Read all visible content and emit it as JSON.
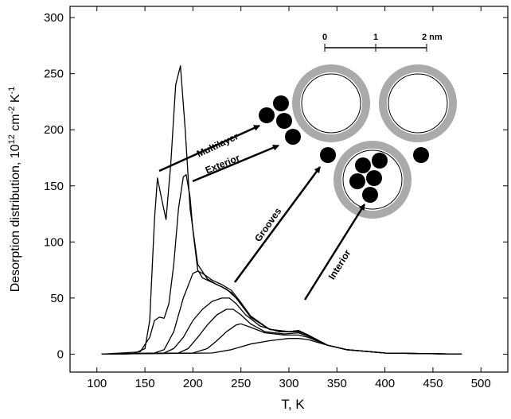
{
  "chart_data": {
    "type": "line",
    "xlabel": "T, K",
    "ylabel": [
      "Desorption distribution, 10",
      "12",
      " cm",
      "-2",
      " K",
      "-1"
    ],
    "xlim": [
      72,
      528
    ],
    "ylim": [
      -16,
      310
    ],
    "xticks": [
      100,
      150,
      200,
      250,
      300,
      350,
      400,
      450,
      500
    ],
    "yticks": [
      0,
      50,
      100,
      150,
      200,
      250,
      300
    ],
    "color": "#000000",
    "annotations": [
      "Multilayer",
      "Exterior",
      "Grooves",
      "Interior"
    ],
    "scale_bar": [
      "0",
      "1",
      "2 nm"
    ],
    "series": [
      {
        "x": [
          105,
          130,
          140,
          150,
          155,
          160,
          163,
          167,
          172,
          177,
          182,
          187,
          192,
          197,
          205,
          215,
          225,
          235,
          245,
          260,
          280,
          300,
          310,
          320,
          340,
          360,
          400,
          450,
          480
        ],
        "values": [
          0,
          0,
          1,
          5,
          30,
          120,
          157,
          140,
          120,
          170,
          240,
          257,
          200,
          130,
          80,
          67,
          62,
          58,
          50,
          33,
          22,
          20,
          21,
          17,
          8,
          4,
          1,
          0.3,
          0
        ]
      },
      {
        "x": [
          105,
          145,
          155,
          160,
          165,
          170,
          175,
          180,
          185,
          190,
          193,
          197,
          200,
          205,
          210,
          220,
          230,
          240,
          250,
          260,
          280,
          300,
          310,
          320,
          340,
          360,
          400,
          480
        ],
        "values": [
          0,
          2,
          15,
          30,
          33,
          32,
          45,
          80,
          130,
          158,
          160,
          140,
          110,
          75,
          68,
          64,
          60,
          55,
          45,
          33,
          22,
          20,
          21,
          17,
          8,
          4,
          1,
          0
        ]
      },
      {
        "x": [
          105,
          160,
          170,
          180,
          190,
          200,
          205,
          210,
          220,
          230,
          240,
          250,
          260,
          280,
          300,
          310,
          320,
          340,
          360,
          400,
          480
        ],
        "values": [
          0,
          1,
          4,
          20,
          50,
          72,
          74,
          72,
          66,
          62,
          57,
          46,
          34,
          22,
          20,
          21,
          17,
          8,
          4,
          1,
          0
        ]
      },
      {
        "x": [
          105,
          170,
          180,
          190,
          200,
          210,
          220,
          230,
          238,
          245,
          255,
          270,
          290,
          310,
          320,
          340,
          360,
          400,
          480
        ],
        "values": [
          0,
          1,
          5,
          15,
          30,
          40,
          47,
          50,
          50,
          45,
          35,
          25,
          20,
          20,
          17,
          8,
          4,
          1,
          0
        ]
      },
      {
        "x": [
          105,
          185,
          195,
          205,
          215,
          225,
          235,
          242,
          250,
          260,
          275,
          295,
          310,
          320,
          340,
          360,
          400,
          480
        ],
        "values": [
          0,
          1,
          5,
          15,
          26,
          35,
          40,
          40,
          35,
          27,
          20,
          18,
          19,
          16,
          8,
          4,
          1,
          0
        ]
      },
      {
        "x": [
          105,
          200,
          215,
          225,
          235,
          245,
          250,
          260,
          275,
          295,
          310,
          320,
          340,
          360,
          400,
          480
        ],
        "values": [
          0,
          1,
          5,
          12,
          20,
          26,
          27,
          24,
          19,
          17,
          17,
          15,
          8,
          4,
          1,
          0
        ]
      },
      {
        "x": [
          105,
          220,
          240,
          260,
          280,
          300,
          310,
          320,
          340,
          360,
          400,
          480
        ],
        "values": [
          0,
          1,
          4,
          9,
          12,
          14,
          14,
          13,
          8,
          4,
          1,
          0
        ]
      }
    ]
  }
}
